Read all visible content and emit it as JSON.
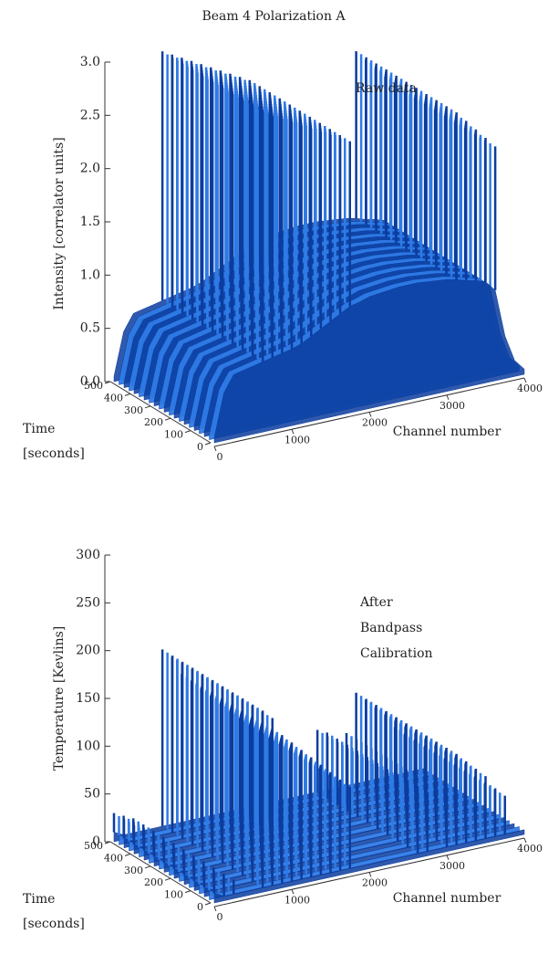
{
  "title": "Beam 4    Polarization A",
  "chart_data": [
    {
      "type": "surface",
      "annotation": [
        "Raw data"
      ],
      "zlabel": "Intensity [correlator units]",
      "xlabel": "Channel number",
      "ylabel": [
        "Time",
        "[seconds]"
      ],
      "xlim": [
        0,
        4000
      ],
      "xticks": [
        0,
        1000,
        2000,
        3000,
        4000
      ],
      "ylim": [
        0,
        500
      ],
      "yticks": [
        500,
        400,
        300,
        200,
        100,
        0
      ],
      "zlim": [
        0,
        3
      ],
      "zticks": [
        {
          "value": 0,
          "label": "0.0"
        },
        0.5,
        {
          "value": 1,
          "label": "1.0"
        },
        1.5,
        {
          "value": 2,
          "label": "2.0"
        },
        2.5,
        {
          "value": 3,
          "label": "3.0"
        }
      ],
      "color": "#2f7be6",
      "edge_color": "#0b3c9e",
      "x": [
        0,
        125,
        250,
        375,
        500,
        625,
        750,
        875,
        1000,
        1125,
        1250,
        1375,
        1500,
        1625,
        1750,
        1875,
        2000,
        2125,
        2250,
        2375,
        2500,
        2625,
        2750,
        2875,
        3000,
        3125,
        3250,
        3375,
        3500,
        3625,
        3750,
        3875,
        4000
      ],
      "values": [
        0.05,
        0.45,
        0.6,
        0.62,
        0.64,
        0.66,
        0.68,
        0.7,
        0.72,
        0.75,
        0.8,
        0.85,
        0.9,
        0.95,
        1.0,
        1.02,
        1.05,
        1.06,
        1.07,
        1.08,
        1.08,
        1.08,
        1.07,
        1.06,
        1.05,
        1.03,
        1.0,
        0.98,
        0.95,
        0.85,
        0.4,
        0.15,
        0.05
      ],
      "max_values": [
        0.05,
        0.45,
        0.6,
        0.62,
        0.64,
        3.0,
        2.95,
        2.9,
        2.85,
        2.8,
        2.75,
        2.7,
        2.65,
        2.6,
        2.55,
        1.02,
        1.05,
        1.06,
        1.07,
        1.08,
        1.08,
        1.08,
        1.07,
        1.06,
        1.05,
        2.6,
        2.5,
        2.4,
        2.3,
        2.2,
        0.4,
        0.15,
        0.05
      ]
    },
    {
      "type": "surface",
      "annotation": [
        "After",
        "Bandpass",
        "Calibration"
      ],
      "zlabel": "Temperature [Kevlins]",
      "xlabel": "Channel number",
      "ylabel": [
        "Time",
        "[seconds]"
      ],
      "xlim": [
        0,
        4000
      ],
      "xticks": [
        0,
        1000,
        2000,
        3000,
        4000
      ],
      "ylim": [
        0,
        500
      ],
      "yticks": [
        500,
        400,
        300,
        200,
        100,
        0
      ],
      "zlim": [
        0,
        300
      ],
      "zticks": [
        0,
        50,
        100,
        150,
        200,
        250,
        300
      ],
      "color": "#2f7be6",
      "edge_color": "#0b3c9e",
      "x": [
        0,
        125,
        250,
        375,
        500,
        625,
        750,
        875,
        1000,
        1125,
        1250,
        1375,
        1500,
        1625,
        1750,
        1875,
        2000,
        2125,
        2250,
        2375,
        2500,
        2625,
        2750,
        2875,
        3000,
        3125,
        3250,
        3375,
        3500,
        3625,
        3750,
        3875,
        4000
      ],
      "values": [
        10,
        5,
        5,
        5,
        5,
        5,
        5,
        5,
        5,
        5,
        5,
        5,
        5,
        5,
        5,
        5,
        5,
        5,
        5,
        5,
        5,
        5,
        5,
        5,
        5,
        5,
        5,
        5,
        5,
        5,
        5,
        5,
        5
      ],
      "max_values": [
        30,
        25,
        20,
        5,
        5,
        190,
        180,
        160,
        150,
        140,
        130,
        120,
        110,
        100,
        90,
        5,
        5,
        5,
        5,
        5,
        5,
        70,
        65,
        5,
        60,
        100,
        90,
        80,
        70,
        55,
        45,
        5,
        5
      ]
    }
  ]
}
